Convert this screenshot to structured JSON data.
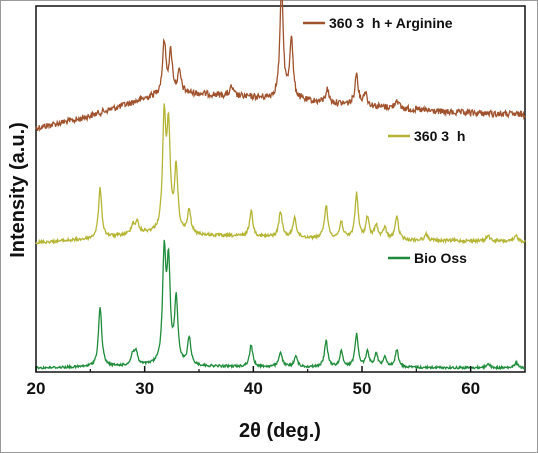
{
  "chart_data": {
    "type": "line",
    "xlabel": "2θ (deg.)",
    "ylabel": "Intensity (a.u.)",
    "xlim": [
      20,
      65
    ],
    "xticks": [
      20,
      30,
      40,
      50,
      60
    ],
    "yticks_shown": false,
    "legend_placement": "inline-right",
    "series": [
      {
        "name": "360 3  h + Arginine",
        "color": "#a0522d",
        "peaks": [
          [
            31.8,
            0.45
          ],
          [
            32.4,
            0.35
          ],
          [
            33.2,
            0.18
          ],
          [
            38.0,
            0.08
          ],
          [
            42.6,
            1.0
          ],
          [
            43.5,
            0.55
          ],
          [
            46.8,
            0.12
          ],
          [
            49.5,
            0.28
          ],
          [
            50.3,
            0.12
          ],
          [
            53.2,
            0.08
          ]
        ],
        "baseline": [
          [
            20,
            0.0
          ],
          [
            24,
            0.08
          ],
          [
            28,
            0.2
          ],
          [
            32,
            0.32
          ],
          [
            36,
            0.3
          ],
          [
            42,
            0.26
          ],
          [
            50,
            0.2
          ],
          [
            58,
            0.14
          ],
          [
            65,
            0.12
          ]
        ]
      },
      {
        "name": "360 3  h",
        "color": "#b5b535",
        "peaks": [
          [
            25.9,
            0.42
          ],
          [
            28.9,
            0.08
          ],
          [
            29.3,
            0.1
          ],
          [
            31.8,
            0.95
          ],
          [
            32.2,
            0.85
          ],
          [
            32.9,
            0.55
          ],
          [
            34.1,
            0.2
          ],
          [
            39.8,
            0.22
          ],
          [
            42.5,
            0.22
          ],
          [
            43.8,
            0.17
          ],
          [
            46.7,
            0.28
          ],
          [
            48.1,
            0.14
          ],
          [
            49.5,
            0.38
          ],
          [
            50.5,
            0.18
          ],
          [
            51.3,
            0.12
          ],
          [
            52.1,
            0.1
          ],
          [
            53.2,
            0.2
          ],
          [
            55.9,
            0.05
          ],
          [
            61.6,
            0.05
          ],
          [
            64.2,
            0.05
          ]
        ],
        "baseline": [
          [
            20,
            0.02
          ],
          [
            25,
            0.05
          ],
          [
            30,
            0.1
          ],
          [
            36,
            0.08
          ],
          [
            45,
            0.06
          ],
          [
            55,
            0.04
          ],
          [
            65,
            0.03
          ]
        ]
      },
      {
        "name": "Bio Oss",
        "color": "#1e8c3a",
        "peaks": [
          [
            25.9,
            0.55
          ],
          [
            28.9,
            0.1
          ],
          [
            29.2,
            0.12
          ],
          [
            31.8,
            1.0
          ],
          [
            32.2,
            0.88
          ],
          [
            32.9,
            0.6
          ],
          [
            34.1,
            0.25
          ],
          [
            39.8,
            0.2
          ],
          [
            42.5,
            0.14
          ],
          [
            43.9,
            0.1
          ],
          [
            46.7,
            0.24
          ],
          [
            48.1,
            0.14
          ],
          [
            49.5,
            0.3
          ],
          [
            50.5,
            0.14
          ],
          [
            51.3,
            0.12
          ],
          [
            52.1,
            0.1
          ],
          [
            53.2,
            0.16
          ],
          [
            61.6,
            0.04
          ],
          [
            64.2,
            0.05
          ]
        ],
        "baseline": [
          [
            20,
            0.0
          ],
          [
            30,
            0.02
          ],
          [
            40,
            0.01
          ],
          [
            65,
            0.0
          ]
        ]
      }
    ]
  }
}
